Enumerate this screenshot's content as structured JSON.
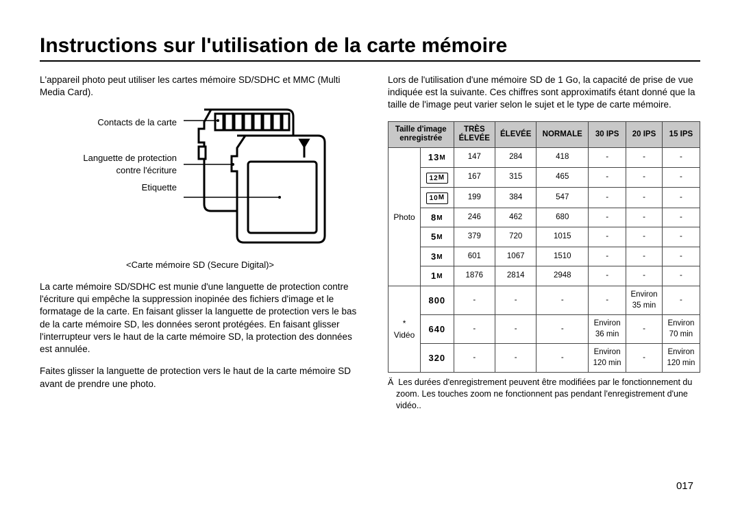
{
  "title": "Instructions sur l'utilisation de la carte mémoire",
  "left": {
    "intro": "L'appareil photo peut utiliser les cartes mémoire SD/SDHC et MMC (Multi Media Card).",
    "label_contacts": "Contacts de la carte",
    "label_lock1": "Languette de protection",
    "label_lock2": "contre l'écriture",
    "label_etiquette": "Etiquette",
    "caption": "<Carte mémoire SD (Secure Digital)>",
    "para2": "La carte mémoire SD/SDHC est munie d'une languette de protection contre l'écriture qui empêche la suppression inopinée des fichiers d'image et le formatage de la carte. En faisant glisser la languette de protection vers le bas de la carte mémoire SD, les données seront protégées. En faisant glisser l'interrupteur vers le haut de la carte mémoire SD, la protection des données est annulée.",
    "para3": "Faites glisser la languette de protection vers le haut de la carte mémoire SD avant de prendre une photo."
  },
  "right": {
    "intro": "Lors de l'utilisation d'une mémoire SD de 1 Go, la capacité de prise de vue indiquée est la suivante. Ces chiffres sont approximatifs étant donné que la taille de l'image peut varier selon le sujet et le type de carte mémoire.",
    "headers": {
      "h1a": "Taille d'image",
      "h1b": "enregistrée",
      "h2a": "TRÈS",
      "h2b": "ÉLEVÉE",
      "h3": "ÉLEVÉE",
      "h4": "NORMALE",
      "h5": "30 IPS",
      "h6": "20 IPS",
      "h7": "15 IPS"
    },
    "cat_photo": "Photo",
    "cat_video": "Vidéo",
    "video_ast": "*",
    "photo_rows": [
      {
        "label": "13",
        "boxed": false,
        "tres": "147",
        "elev": "284",
        "norm": "418"
      },
      {
        "label": "12",
        "boxed": true,
        "tres": "167",
        "elev": "315",
        "norm": "465"
      },
      {
        "label": "10",
        "boxed": true,
        "tres": "199",
        "elev": "384",
        "norm": "547"
      },
      {
        "label": "8",
        "boxed": false,
        "tres": "246",
        "elev": "462",
        "norm": "680"
      },
      {
        "label": "5",
        "boxed": false,
        "tres": "379",
        "elev": "720",
        "norm": "1015"
      },
      {
        "label": "3",
        "boxed": false,
        "tres": "601",
        "elev": "1067",
        "norm": "1510"
      },
      {
        "label": "1",
        "boxed": false,
        "tres": "1876",
        "elev": "2814",
        "norm": "2948"
      }
    ],
    "video_rows": [
      {
        "size": "800",
        "ips30": "-",
        "ips20a": "Environ",
        "ips20b": "35 min",
        "ips15": "-"
      },
      {
        "size": "640",
        "ips30a": "Environ",
        "ips30b": "36 min",
        "ips20": "-",
        "ips15a": "Environ",
        "ips15b": "70 min"
      },
      {
        "size": "320",
        "ips30a": "Environ",
        "ips30b": "120 min",
        "ips20": "-",
        "ips15a": "Environ",
        "ips15b": "120 min"
      }
    ],
    "footnote": "Les durées d'enregistrement peuvent être modifiées par le fonctionnement du zoom. Les touches zoom ne fonctionnent pas pendant l'enregistrement d'une vidéo..",
    "footnote_ast": "Ä"
  },
  "page_number": "017",
  "colors": {
    "header_bg": "#c8c8c8",
    "border": "#444444",
    "text": "#000000",
    "bg": "#ffffff"
  }
}
